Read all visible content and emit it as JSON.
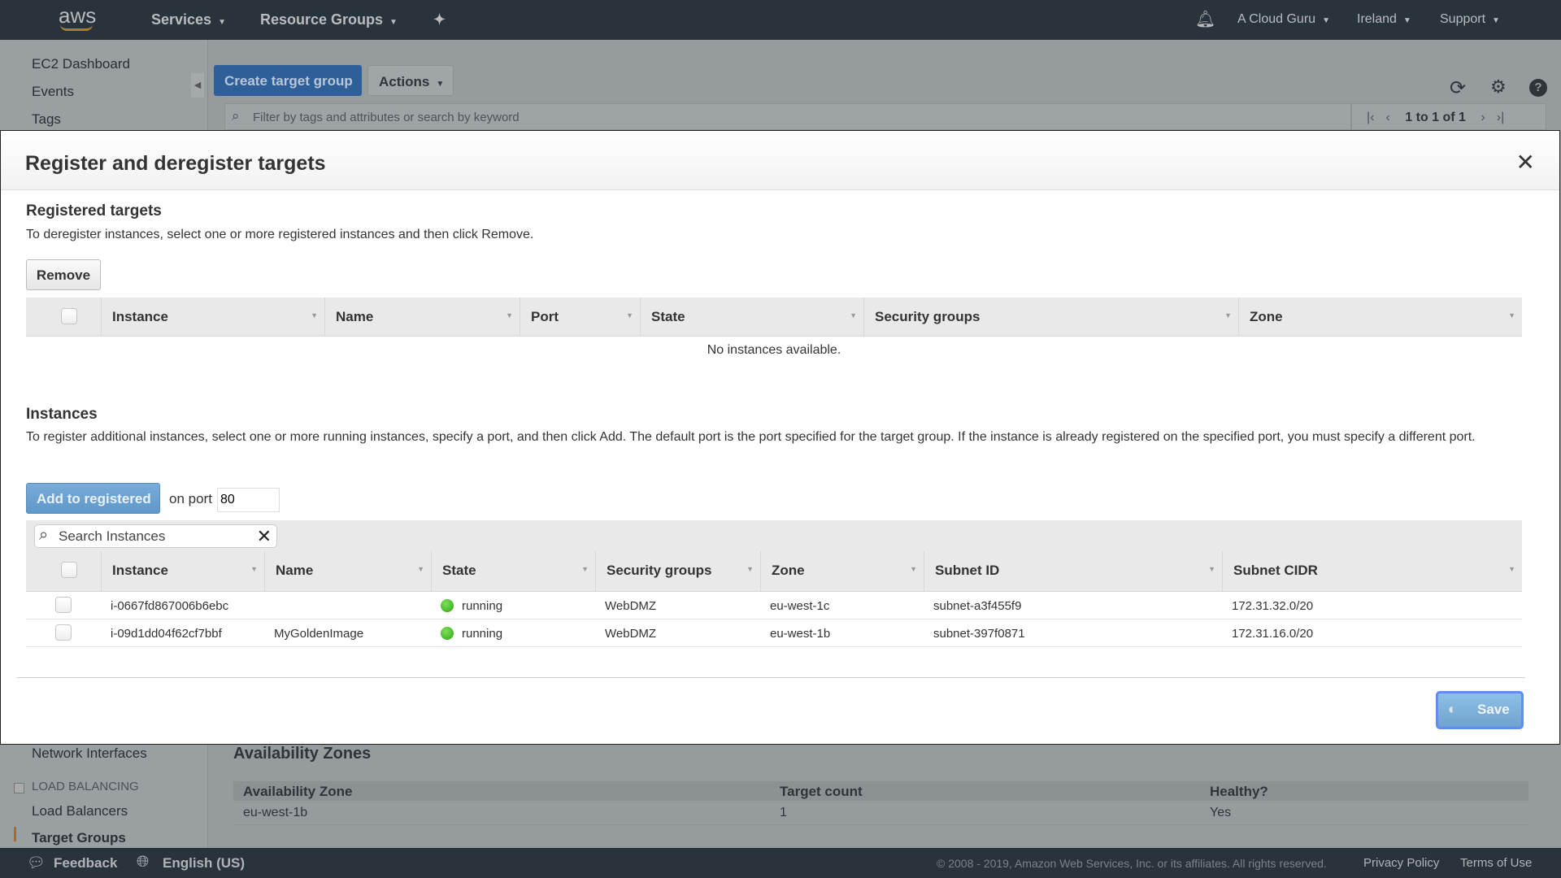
{
  "topbar": {
    "logo": "aws",
    "services": "Services",
    "resource_groups": "Resource Groups",
    "account": "A Cloud Guru",
    "region": "Ireland",
    "support": "Support"
  },
  "sidebar": {
    "items": [
      "EC2 Dashboard",
      "Events",
      "Tags"
    ],
    "lower_items": [
      "Network Interfaces"
    ],
    "section": "LOAD BALANCING",
    "lb_items": [
      "Load Balancers",
      "Target Groups"
    ]
  },
  "toolbar": {
    "create": "Create target group",
    "actions": "Actions",
    "filter_placeholder": "Filter by tags and attributes or search by keyword",
    "pagination": "1 to 1 of 1"
  },
  "modal": {
    "title": "Register and deregister targets",
    "registered": {
      "heading": "Registered targets",
      "desc": "To deregister instances, select one or more registered instances and then click Remove.",
      "remove": "Remove",
      "columns": [
        "Instance",
        "Name",
        "Port",
        "State",
        "Security groups",
        "Zone"
      ],
      "empty": "No instances available."
    },
    "instances": {
      "heading": "Instances",
      "desc": "To register additional instances, select one or more running instances, specify a port, and then click Add. The default port is the port specified for the target group. If the instance is already registered on the specified port, you must specify a different port.",
      "add": "Add to registered",
      "on_port": "on port",
      "port": "80",
      "search_placeholder": "Search Instances",
      "columns": [
        "Instance",
        "Name",
        "State",
        "Security groups",
        "Zone",
        "Subnet ID",
        "Subnet CIDR"
      ],
      "rows": [
        {
          "instance": "i-0667fd867006b6ebc",
          "name": "",
          "state": "running",
          "sg": "WebDMZ",
          "zone": "eu-west-1c",
          "subnet": "subnet-a3f455f9",
          "cidr": "172.31.32.0/20"
        },
        {
          "instance": "i-09d1dd04f62cf7bbf",
          "name": "MyGoldenImage",
          "state": "running",
          "sg": "WebDMZ",
          "zone": "eu-west-1b",
          "subnet": "subnet-397f0871",
          "cidr": "172.31.16.0/20"
        }
      ]
    },
    "save": "Save"
  },
  "background": {
    "az_heading": "Availability Zones",
    "az_columns": [
      "Availability Zone",
      "Target count",
      "Healthy?"
    ],
    "az_row": [
      "eu-west-1b",
      "1",
      "Yes"
    ]
  },
  "footer": {
    "feedback": "Feedback",
    "language": "English (US)",
    "copyright": "© 2008 - 2019, Amazon Web Services, Inc. or its affiliates. All rights reserved.",
    "privacy": "Privacy Policy",
    "terms": "Terms of Use"
  },
  "colors": {
    "accent": "#2e73b8",
    "running": "#3cb521"
  }
}
